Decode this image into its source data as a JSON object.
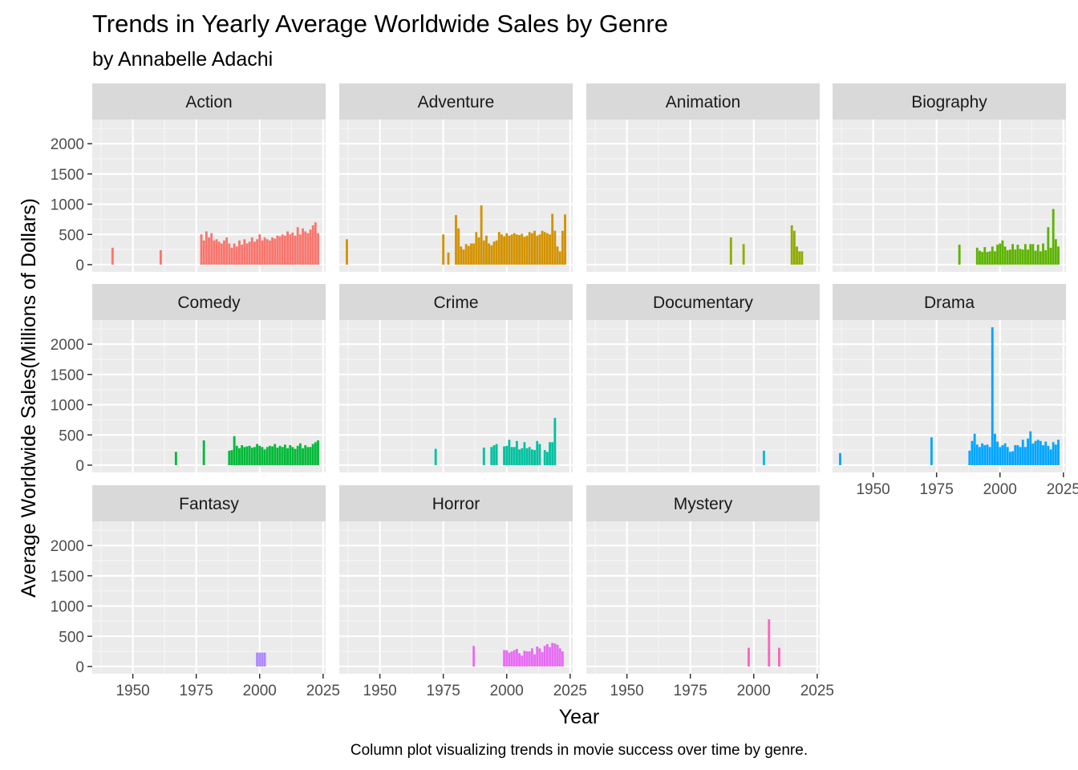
{
  "chart_data": {
    "type": "bar",
    "title": "Trends in Yearly Average Worldwide Sales by Genre",
    "subtitle": "by Annabelle Adachi",
    "xlabel": "Year",
    "ylabel": "Average Worldwide Sales(Millions of Dollars)",
    "caption": "Column plot visualizing trends in movie success over time by genre.",
    "xlim": [
      1934,
      2026
    ],
    "ylim": [
      -120,
      2400
    ],
    "x_ticks": [
      1950,
      1975,
      2000,
      2025
    ],
    "y_ticks": [
      0,
      500,
      1000,
      1500,
      2000
    ],
    "grid": true,
    "facet_layout": "wrap-4-columns",
    "panels": [
      {
        "genre": "Action",
        "color": "#F8766D",
        "x": [
          1942,
          1961,
          1977,
          1978,
          1979,
          1980,
          1981,
          1982,
          1983,
          1984,
          1985,
          1986,
          1987,
          1988,
          1989,
          1990,
          1991,
          1992,
          1993,
          1994,
          1995,
          1996,
          1997,
          1998,
          1999,
          2000,
          2001,
          2002,
          2003,
          2004,
          2005,
          2006,
          2007,
          2008,
          2009,
          2010,
          2011,
          2012,
          2013,
          2014,
          2015,
          2016,
          2017,
          2018,
          2019,
          2020,
          2021,
          2022,
          2023
        ],
        "values": [
          280,
          240,
          500,
          400,
          550,
          450,
          520,
          400,
          420,
          380,
          350,
          400,
          450,
          350,
          280,
          350,
          300,
          400,
          330,
          420,
          350,
          380,
          450,
          380,
          420,
          500,
          400,
          450,
          420,
          400,
          450,
          430,
          480,
          470,
          500,
          480,
          550,
          500,
          530,
          480,
          620,
          500,
          600,
          550,
          520,
          580,
          650,
          700,
          520
        ]
      },
      {
        "genre": "Adventure",
        "color": "#D39200",
        "x": [
          1937,
          1975,
          1977,
          1980,
          1981,
          1982,
          1983,
          1984,
          1985,
          1986,
          1987,
          1988,
          1989,
          1990,
          1991,
          1992,
          1993,
          1994,
          1995,
          1996,
          1997,
          1998,
          1999,
          2000,
          2001,
          2002,
          2003,
          2004,
          2005,
          2006,
          2007,
          2008,
          2009,
          2010,
          2011,
          2012,
          2013,
          2014,
          2015,
          2016,
          2017,
          2018,
          2019,
          2020,
          2021,
          2022,
          2023
        ],
        "values": [
          420,
          500,
          200,
          820,
          600,
          300,
          250,
          340,
          310,
          350,
          350,
          540,
          450,
          980,
          400,
          480,
          350,
          320,
          380,
          400,
          540,
          500,
          470,
          520,
          480,
          500,
          520,
          500,
          490,
          510,
          460,
          480,
          540,
          520,
          560,
          480,
          500,
          560,
          540,
          520,
          500,
          840,
          560,
          300,
          220,
          560,
          830
        ]
      },
      {
        "genre": "Animation",
        "color": "#93AA00",
        "x": [
          1991,
          1996,
          2015,
          2016,
          2017,
          2018,
          2019
        ],
        "values": [
          450,
          340,
          650,
          560,
          300,
          220,
          220
        ]
      },
      {
        "genre": "Biography",
        "color": "#5DB300",
        "x": [
          1984,
          1991,
          1992,
          1993,
          1994,
          1995,
          1996,
          1997,
          1998,
          1999,
          2000,
          2001,
          2002,
          2003,
          2004,
          2005,
          2006,
          2007,
          2008,
          2009,
          2010,
          2011,
          2012,
          2013,
          2014,
          2015,
          2016,
          2017,
          2018,
          2019,
          2020,
          2021,
          2022,
          2023
        ],
        "values": [
          330,
          280,
          230,
          210,
          290,
          210,
          220,
          300,
          220,
          330,
          350,
          400,
          300,
          240,
          250,
          340,
          250,
          330,
          260,
          250,
          340,
          250,
          340,
          340,
          230,
          330,
          220,
          350,
          240,
          620,
          280,
          920,
          420,
          300
        ]
      },
      {
        "genre": "Comedy",
        "color": "#00BA38",
        "x": [
          1967,
          1978,
          1988,
          1989,
          1990,
          1991,
          1992,
          1993,
          1994,
          1995,
          1996,
          1997,
          1998,
          1999,
          2000,
          2001,
          2002,
          2003,
          2004,
          2005,
          2006,
          2007,
          2008,
          2009,
          2010,
          2011,
          2012,
          2013,
          2014,
          2015,
          2016,
          2017,
          2018,
          2019,
          2020,
          2021,
          2022,
          2023
        ],
        "values": [
          220,
          410,
          240,
          250,
          480,
          320,
          280,
          330,
          300,
          310,
          320,
          290,
          300,
          350,
          320,
          300,
          260,
          300,
          320,
          310,
          350,
          290,
          320,
          300,
          340,
          280,
          330,
          300,
          270,
          320,
          360,
          280,
          330,
          300,
          300,
          350,
          380,
          410
        ]
      },
      {
        "genre": "Crime",
        "color": "#00C19F",
        "x": [
          1972,
          1991,
          1994,
          1995,
          1996,
          1999,
          2000,
          2001,
          2002,
          2003,
          2004,
          2005,
          2006,
          2007,
          2008,
          2009,
          2010,
          2011,
          2012,
          2013,
          2015,
          2016,
          2017,
          2018,
          2019
        ],
        "values": [
          270,
          290,
          300,
          330,
          350,
          310,
          320,
          420,
          300,
          300,
          400,
          260,
          280,
          380,
          280,
          300,
          260,
          250,
          400,
          350,
          250,
          220,
          380,
          380,
          780
        ]
      },
      {
        "genre": "Documentary",
        "color": "#00B9E3",
        "x": [
          2004
        ],
        "values": [
          240
        ]
      },
      {
        "genre": "Drama",
        "color": "#00A5FF",
        "x": [
          1937,
          1973,
          1988,
          1989,
          1990,
          1991,
          1992,
          1993,
          1994,
          1995,
          1996,
          1997,
          1998,
          1999,
          2000,
          2001,
          2002,
          2003,
          2004,
          2005,
          2006,
          2007,
          2008,
          2009,
          2010,
          2011,
          2012,
          2013,
          2014,
          2015,
          2016,
          2017,
          2018,
          2019,
          2020,
          2021,
          2022,
          2023
        ],
        "values": [
          200,
          460,
          240,
          400,
          520,
          340,
          300,
          360,
          330,
          340,
          300,
          2280,
          520,
          390,
          300,
          330,
          360,
          300,
          220,
          230,
          330,
          330,
          300,
          420,
          300,
          440,
          560,
          360,
          400,
          420,
          400,
          330,
          390,
          320,
          260,
          380,
          340,
          420
        ]
      },
      {
        "genre": "Fantasy",
        "color": "#AC88FF",
        "x": [
          1999,
          2000,
          2001,
          2002
        ],
        "values": [
          230,
          230,
          230,
          230
        ]
      },
      {
        "genre": "Horror",
        "color": "#E76BF3",
        "x": [
          1987,
          1999,
          2000,
          2001,
          2002,
          2003,
          2004,
          2005,
          2006,
          2007,
          2008,
          2009,
          2010,
          2011,
          2012,
          2013,
          2014,
          2015,
          2016,
          2017,
          2018,
          2019,
          2020,
          2021,
          2022
        ],
        "values": [
          340,
          270,
          270,
          230,
          250,
          270,
          290,
          220,
          180,
          260,
          250,
          250,
          300,
          200,
          330,
          300,
          240,
          340,
          370,
          320,
          390,
          380,
          360,
          300,
          250
        ]
      },
      {
        "genre": "Mystery",
        "color": "#FF62BC",
        "x": [
          1998,
          2006,
          2010
        ],
        "values": [
          310,
          780,
          310
        ]
      }
    ]
  }
}
